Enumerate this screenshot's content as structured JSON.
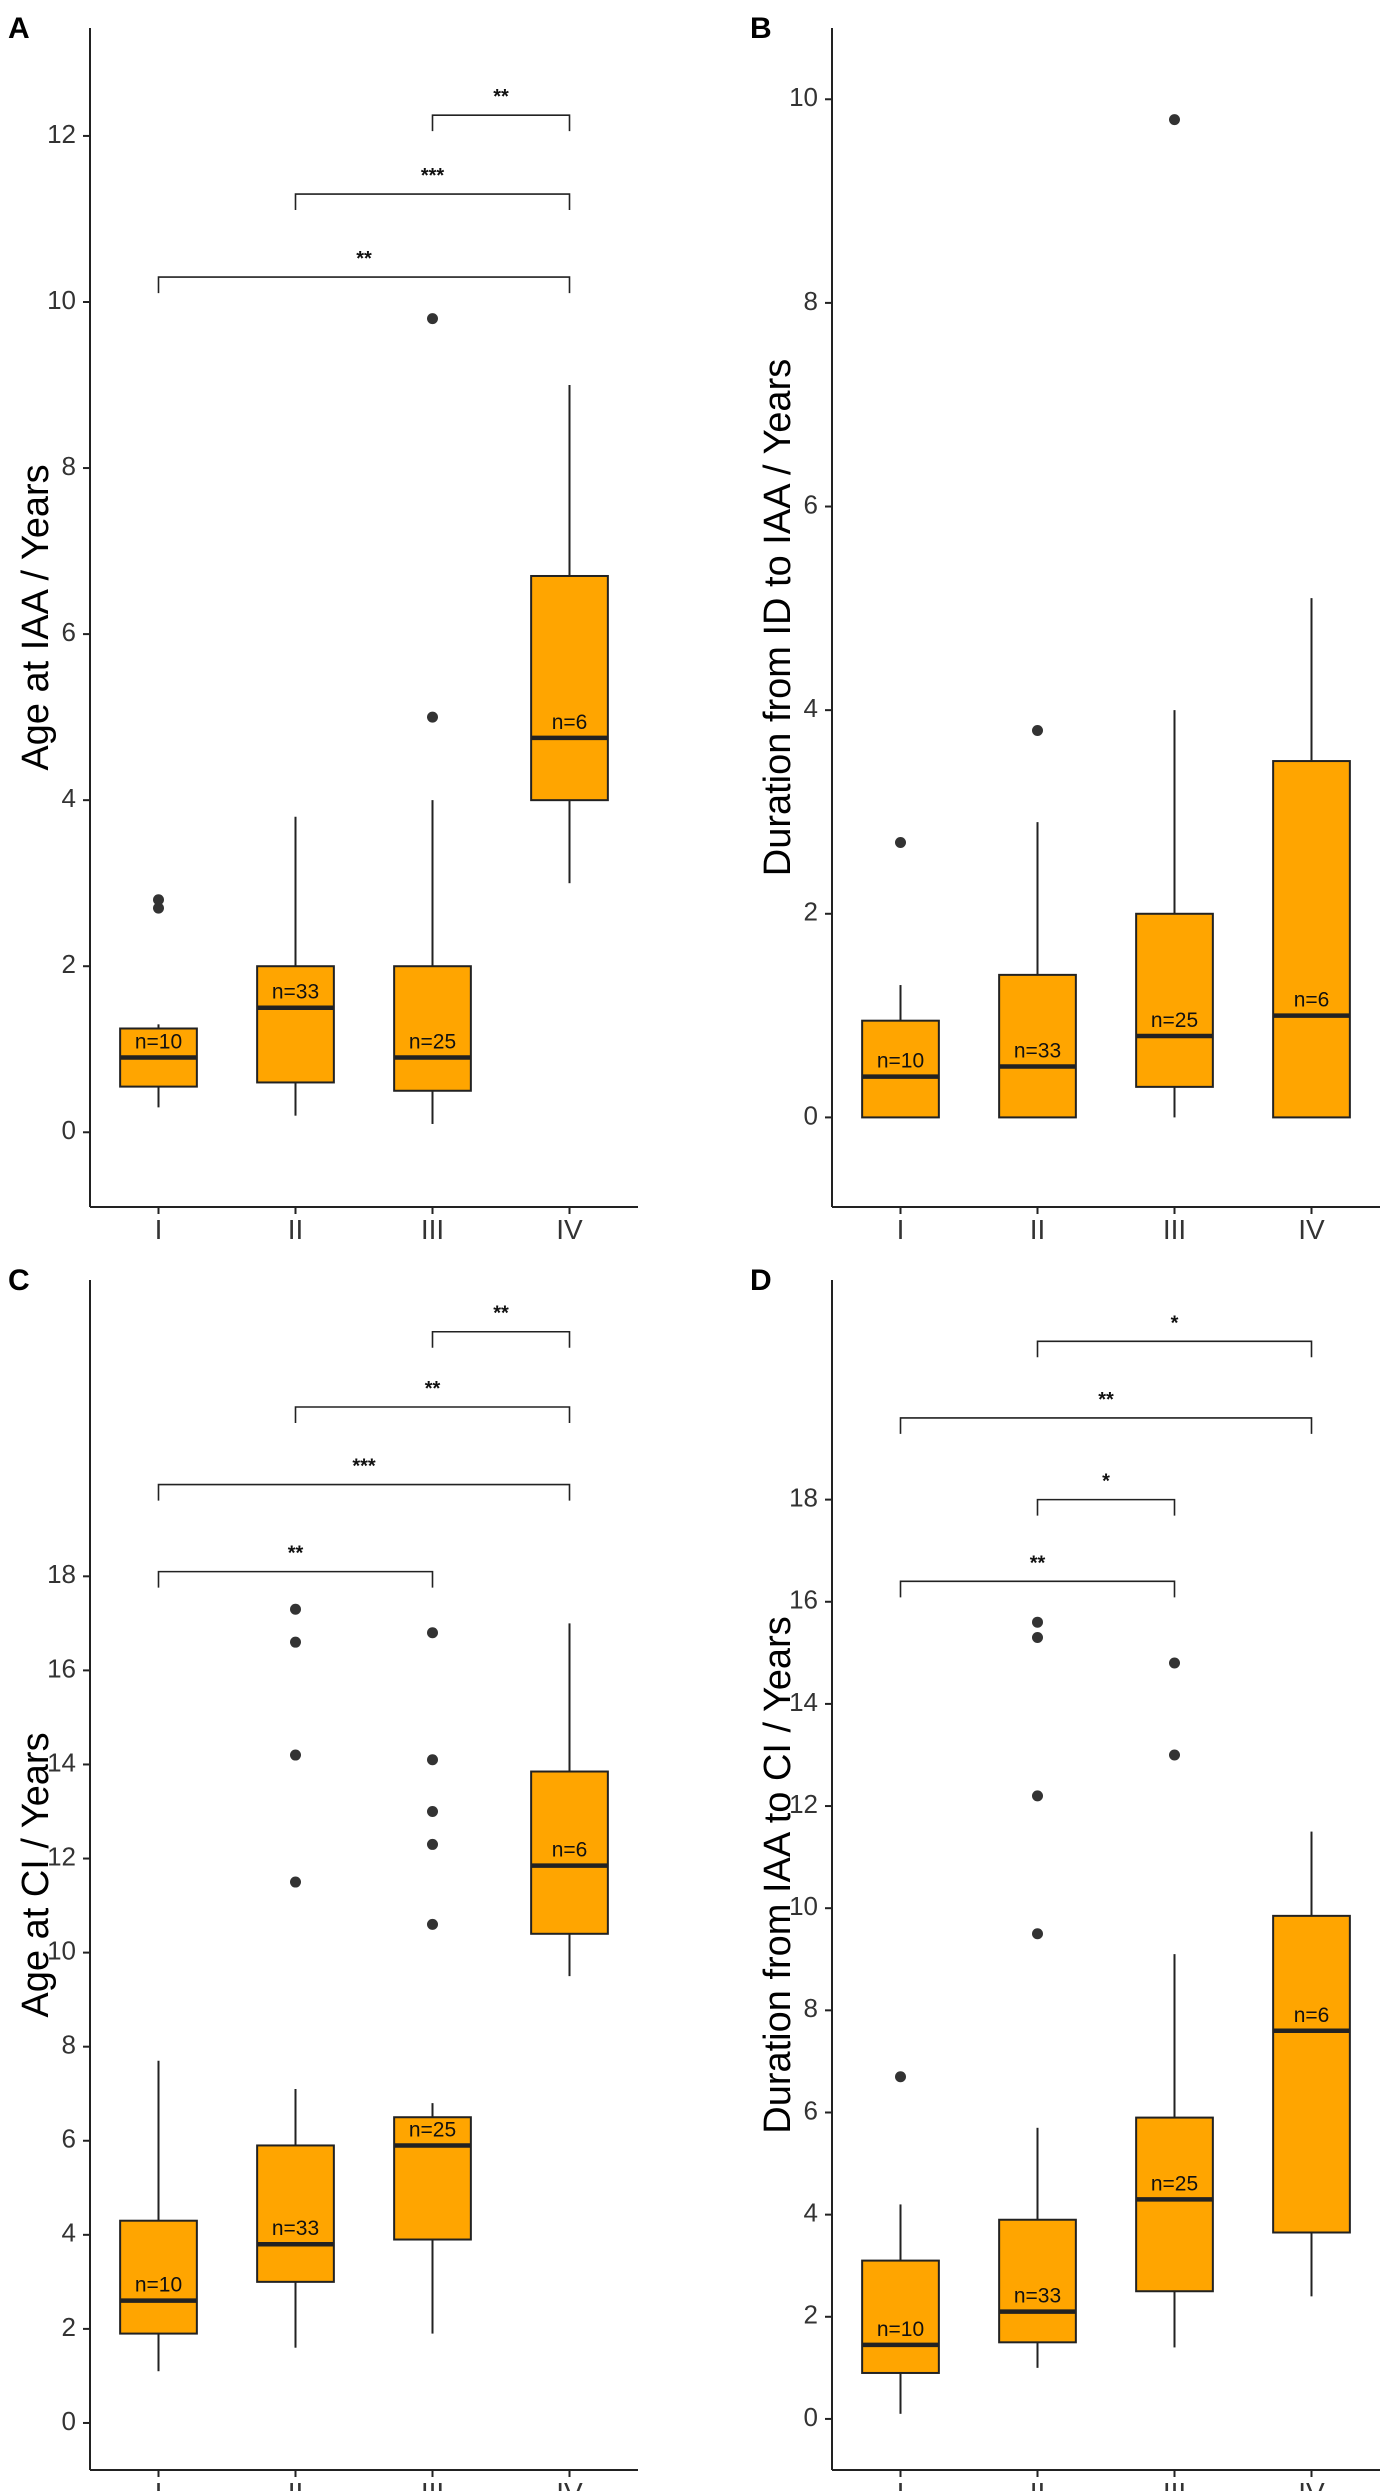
{
  "chart_data": [
    {
      "type": "box",
      "panel": "A",
      "ylabel": "Age at IAA / Years",
      "categories": [
        "I",
        "II",
        "III",
        "IV"
      ],
      "ylim": [
        -0.9,
        13.3
      ],
      "yticks": [
        0,
        2,
        4,
        6,
        8,
        10,
        12
      ],
      "boxes": [
        {
          "category": "I",
          "q1": 0.55,
          "median": 0.9,
          "q3": 1.25,
          "whisker_low": 0.3,
          "whisker_high": 1.3,
          "outliers": [
            2.7,
            2.8
          ],
          "n_label": "n=10"
        },
        {
          "category": "II",
          "q1": 0.6,
          "median": 1.5,
          "q3": 2.0,
          "whisker_low": 0.2,
          "whisker_high": 3.8,
          "outliers": [],
          "n_label": "n=33"
        },
        {
          "category": "III",
          "q1": 0.5,
          "median": 0.9,
          "q3": 2.0,
          "whisker_low": 0.1,
          "whisker_high": 4.0,
          "outliers": [
            5.0,
            9.8
          ],
          "n_label": "n=25"
        },
        {
          "category": "IV",
          "q1": 4.0,
          "median": 4.75,
          "q3": 6.7,
          "whisker_low": 3.0,
          "whisker_high": 9.0,
          "outliers": [],
          "n_label": "n=6"
        }
      ],
      "significance": [
        {
          "from": "III",
          "to": "IV",
          "y": 12.25,
          "label": "**"
        },
        {
          "from": "II",
          "to": "IV",
          "y": 11.3,
          "label": "***"
        },
        {
          "from": "I",
          "to": "IV",
          "y": 10.3,
          "label": "**"
        }
      ]
    },
    {
      "type": "box",
      "panel": "B",
      "ylabel": "Duration from ID to IAA / Years",
      "categories": [
        "I",
        "II",
        "III",
        "IV"
      ],
      "ylim": [
        -0.88,
        10.7
      ],
      "yticks": [
        0,
        2,
        4,
        6,
        8,
        10
      ],
      "boxes": [
        {
          "category": "I",
          "q1": 0.0,
          "median": 0.4,
          "q3": 0.95,
          "whisker_low": 0.0,
          "whisker_high": 1.3,
          "outliers": [
            2.7
          ],
          "n_label": "n=10"
        },
        {
          "category": "II",
          "q1": 0.0,
          "median": 0.5,
          "q3": 1.4,
          "whisker_low": 0.0,
          "whisker_high": 2.9,
          "outliers": [
            3.8
          ],
          "n_label": "n=33"
        },
        {
          "category": "III",
          "q1": 0.3,
          "median": 0.8,
          "q3": 2.0,
          "whisker_low": 0.0,
          "whisker_high": 4.0,
          "outliers": [
            9.8
          ],
          "n_label": "n=25"
        },
        {
          "category": "IV",
          "q1": 0.0,
          "median": 1.0,
          "q3": 3.5,
          "whisker_low": 0.0,
          "whisker_high": 5.1,
          "outliers": [],
          "n_label": "n=6"
        }
      ],
      "significance": []
    },
    {
      "type": "box",
      "panel": "C",
      "ylabel": "Age at CI / Years",
      "categories": [
        "I",
        "II",
        "III",
        "IV"
      ],
      "ylim": [
        -1.0,
        24.3
      ],
      "yticks": [
        0,
        2,
        4,
        6,
        8,
        10,
        12,
        14,
        16,
        18
      ],
      "boxes": [
        {
          "category": "I",
          "q1": 1.9,
          "median": 2.6,
          "q3": 4.3,
          "whisker_low": 1.1,
          "whisker_high": 7.7,
          "outliers": [],
          "n_label": "n=10"
        },
        {
          "category": "II",
          "q1": 3.0,
          "median": 3.8,
          "q3": 5.9,
          "whisker_low": 1.6,
          "whisker_high": 7.1,
          "outliers": [
            11.5,
            14.2,
            16.6,
            17.3
          ],
          "n_label": "n=33"
        },
        {
          "category": "III",
          "q1": 3.9,
          "median": 5.9,
          "q3": 6.5,
          "whisker_low": 1.9,
          "whisker_high": 6.8,
          "outliers": [
            10.6,
            12.3,
            13.0,
            14.1,
            16.8
          ],
          "n_label": "n=25"
        },
        {
          "category": "IV",
          "q1": 10.4,
          "median": 11.85,
          "q3": 13.85,
          "whisker_low": 9.5,
          "whisker_high": 17.0,
          "outliers": [],
          "n_label": "n=6"
        }
      ],
      "significance": [
        {
          "from": "III",
          "to": "IV",
          "y": 23.2,
          "label": "**"
        },
        {
          "from": "II",
          "to": "IV",
          "y": 21.6,
          "label": "**"
        },
        {
          "from": "I",
          "to": "IV",
          "y": 19.95,
          "label": "***"
        },
        {
          "from": "I",
          "to": "III",
          "y": 18.1,
          "label": "**"
        }
      ]
    },
    {
      "type": "box",
      "panel": "D",
      "ylabel": "Duration from IAA to CI / Years",
      "categories": [
        "I",
        "II",
        "III",
        "IV"
      ],
      "ylim": [
        -1.0,
        22.3
      ],
      "yticks": [
        0,
        2,
        4,
        6,
        8,
        10,
        12,
        14,
        16,
        18
      ],
      "boxes": [
        {
          "category": "I",
          "q1": 0.9,
          "median": 1.45,
          "q3": 3.1,
          "whisker_low": 0.1,
          "whisker_high": 4.2,
          "outliers": [
            6.7
          ],
          "n_label": "n=10"
        },
        {
          "category": "II",
          "q1": 1.5,
          "median": 2.1,
          "q3": 3.9,
          "whisker_low": 1.0,
          "whisker_high": 5.7,
          "outliers": [
            9.5,
            12.2,
            15.3,
            15.6
          ],
          "n_label": "n=33"
        },
        {
          "category": "III",
          "q1": 2.5,
          "median": 4.3,
          "q3": 5.9,
          "whisker_low": 1.4,
          "whisker_high": 9.1,
          "outliers": [
            13.0,
            14.8
          ],
          "n_label": "n=25"
        },
        {
          "category": "IV",
          "q1": 3.65,
          "median": 7.6,
          "q3": 9.85,
          "whisker_low": 2.4,
          "whisker_high": 11.5,
          "outliers": [],
          "n_label": "n=6"
        }
      ],
      "significance": [
        {
          "from": "II",
          "to": "IV",
          "y": 21.1,
          "label": "*"
        },
        {
          "from": "I",
          "to": "IV",
          "y": 19.6,
          "label": "**"
        },
        {
          "from": "II",
          "to": "III",
          "y": 18.0,
          "label": "*"
        },
        {
          "from": "I",
          "to": "III",
          "y": 16.4,
          "label": "**"
        }
      ]
    }
  ]
}
